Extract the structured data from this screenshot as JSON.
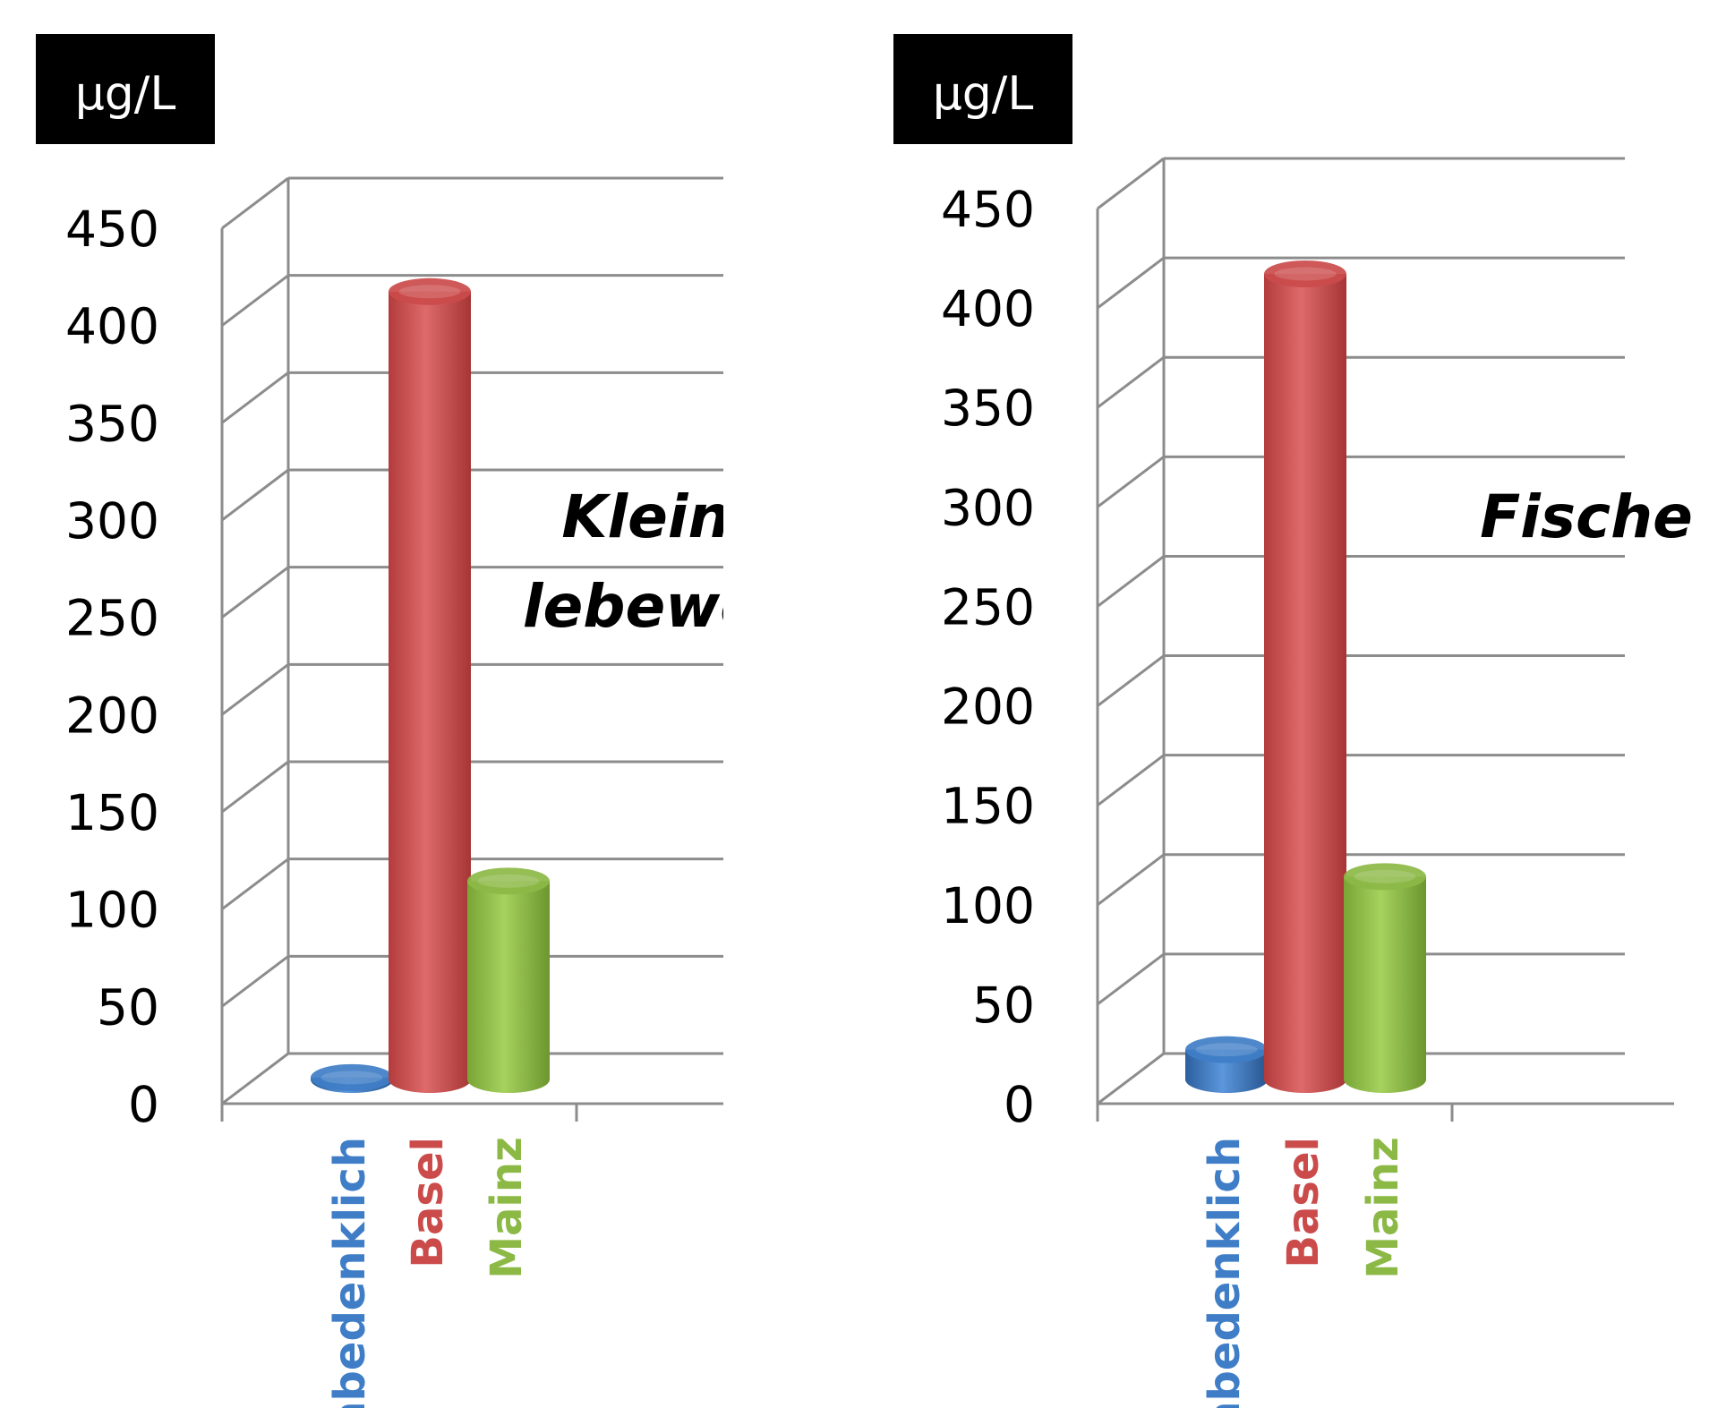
{
  "chart_data": [
    {
      "type": "bar",
      "title": "Kleinst-\nlebewesen",
      "ylabel": "µg/L",
      "categories": [
        "Unbedenklich",
        "Basel",
        "Mainz"
      ],
      "values": [
        1,
        405,
        102
      ],
      "ylim": [
        0,
        450
      ],
      "yticks": [
        0,
        50,
        100,
        150,
        200,
        250,
        300,
        350,
        400,
        450
      ],
      "grid": true,
      "legend": "none"
    },
    {
      "type": "bar",
      "title": "Fische",
      "ylabel": "µg/L",
      "categories": [
        "Unbedenklich",
        "Basel",
        "Mainz"
      ],
      "values": [
        15,
        405,
        102
      ],
      "ylim": [
        0,
        450
      ],
      "yticks": [
        0,
        50,
        100,
        150,
        200,
        250,
        300,
        350,
        400,
        450
      ],
      "grid": true,
      "legend": "none"
    }
  ],
  "colors": {
    "Unbedenklich": "#3f7ec7",
    "Basel": "#cb4b4b",
    "Mainz": "#8cb946"
  }
}
